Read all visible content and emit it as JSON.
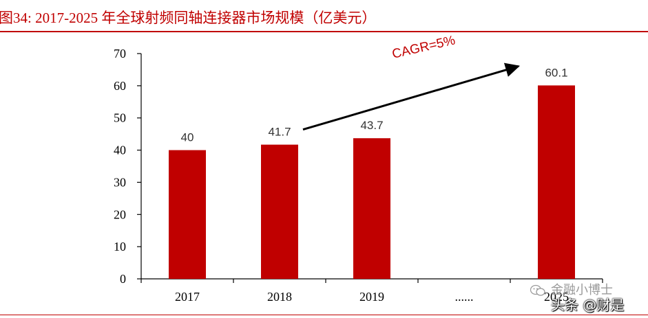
{
  "header": {
    "title": "图34:   2017-2025 年全球射频同轴连接器市场规模（亿美元）",
    "accent_color": "#c00000"
  },
  "chart_data": {
    "type": "bar",
    "title": "2017-2025 年全球射频同轴连接器市场规模（亿美元）",
    "categories": [
      "2017",
      "2018",
      "2019",
      "......",
      "2025"
    ],
    "values": [
      40,
      41.7,
      43.7,
      null,
      60.1
    ],
    "data_labels": [
      "40",
      "41.7",
      "43.7",
      "",
      "60.1"
    ],
    "ylim": [
      0,
      70
    ],
    "yticks": [
      0,
      10,
      20,
      30,
      40,
      50,
      60,
      70
    ],
    "xlabel": "",
    "ylabel": "",
    "grid": false,
    "bar_color": "#c00000",
    "annotation": {
      "text": "CAGR=5%",
      "color": "#c00000"
    }
  },
  "watermark": {
    "line1": "金融小博士",
    "line2": "头条 @财是",
    "icon": "wechat-icon"
  }
}
